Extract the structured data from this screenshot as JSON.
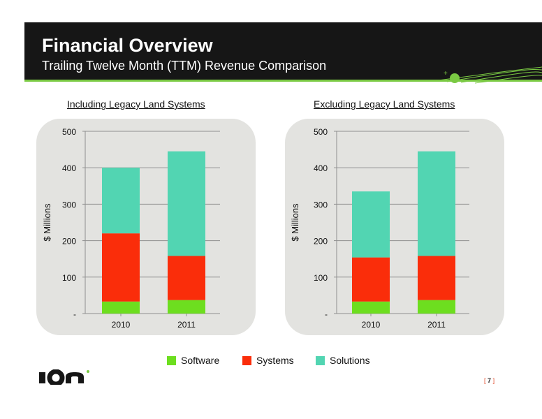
{
  "header": {
    "title": "Financial Overview",
    "subtitle": "Trailing Twelve Month (TTM) Revenue Comparison"
  },
  "legend": {
    "items": [
      {
        "label": "Software",
        "color": "#6dde1f"
      },
      {
        "label": "Systems",
        "color": "#fa2d0a"
      },
      {
        "label": "Solutions",
        "color": "#52d5b2"
      }
    ]
  },
  "footer": {
    "page_number": "7",
    "bracket_open": "[",
    "bracket_close": "]",
    "logo_text": "ION"
  },
  "chart_data": [
    {
      "type": "bar",
      "stacked": true,
      "title": "Including Legacy Land Systems",
      "ylabel": "$ Millions",
      "xlabel": "",
      "categories": [
        "2010",
        "2011"
      ],
      "series": [
        {
          "name": "Software",
          "values": [
            33,
            37
          ],
          "color": "#6dde1f"
        },
        {
          "name": "Systems",
          "values": [
            187,
            121
          ],
          "color": "#fa2d0a"
        },
        {
          "name": "Solutions",
          "values": [
            180,
            287
          ],
          "color": "#52d5b2"
        }
      ],
      "ylim": [
        0,
        500
      ],
      "yticks": [
        0,
        100,
        200,
        300,
        400,
        500
      ],
      "ytick_labels": [
        "-",
        "100",
        "200",
        "300",
        "400",
        "500"
      ],
      "grid": true,
      "legend_position": "bottom"
    },
    {
      "type": "bar",
      "stacked": true,
      "title": "Excluding Legacy Land Systems",
      "ylabel": "$ Millions",
      "xlabel": "",
      "categories": [
        "2010",
        "2011"
      ],
      "series": [
        {
          "name": "Software",
          "values": [
            33,
            37
          ],
          "color": "#6dde1f"
        },
        {
          "name": "Systems",
          "values": [
            121,
            121
          ],
          "color": "#fa2d0a"
        },
        {
          "name": "Solutions",
          "values": [
            181,
            287
          ],
          "color": "#52d5b2"
        }
      ],
      "ylim": [
        0,
        500
      ],
      "yticks": [
        0,
        100,
        200,
        300,
        400,
        500
      ],
      "ytick_labels": [
        "-",
        "100",
        "200",
        "300",
        "400",
        "500"
      ],
      "grid": true,
      "legend_position": "bottom"
    }
  ]
}
